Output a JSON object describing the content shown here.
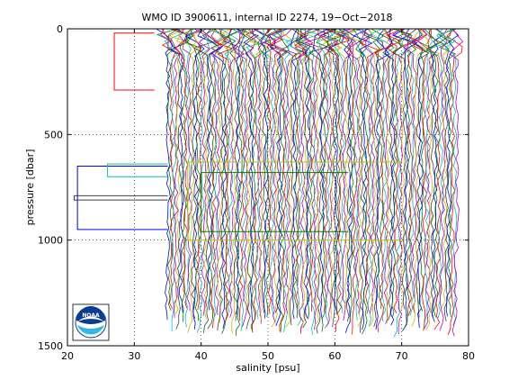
{
  "chart_data": {
    "type": "line",
    "title": "WMO ID 3900611, internal ID 2274, 19−Oct−2018",
    "xlabel": "salinity [psu]",
    "ylabel": "pressure [dbar]",
    "xlim": [
      20,
      80
    ],
    "ylim": [
      1500,
      0
    ],
    "y_reversed": true,
    "grid": true,
    "grid_style": "dotted",
    "x_ticks": [
      20,
      30,
      40,
      50,
      60,
      70,
      80
    ],
    "y_ticks": [
      0,
      500,
      1000,
      1500
    ],
    "profile_offset_psu": 0.3,
    "profile_count": 145,
    "first_profile_base": [
      {
        "p": 0,
        "s": 34.6
      },
      {
        "p": 50,
        "s": 34.7
      },
      {
        "p": 100,
        "s": 34.9
      },
      {
        "p": 200,
        "s": 35.0
      },
      {
        "p": 300,
        "s": 35.0
      },
      {
        "p": 450,
        "s": 35.0
      },
      {
        "p": 600,
        "s": 35.1
      },
      {
        "p": 800,
        "s": 35.1
      },
      {
        "p": 1000,
        "s": 35.0
      },
      {
        "p": 1200,
        "s": 34.9
      },
      {
        "p": 1400,
        "s": 34.9
      }
    ],
    "outlier_segments": [
      {
        "p_from": 650,
        "p_to": 950,
        "s_left": 21.5,
        "s_right": 35.0
      },
      {
        "p_from": 640,
        "p_to": 700,
        "s_left": 26.0,
        "s_right": 35.0
      },
      {
        "p_from": 790,
        "p_to": 810,
        "s_left": 21.0,
        "s_right": 35.0
      },
      {
        "p_from": 20,
        "p_to": 290,
        "s_left": 27.0,
        "s_right": 33.0
      },
      {
        "p_from": 630,
        "p_to": 1000,
        "s_left": 38.0,
        "s_right": 70.0
      },
      {
        "p_from": 680,
        "p_to": 960,
        "s_left": 40.0,
        "s_right": 62.0
      }
    ],
    "series_colors": [
      "#0000ff",
      "#008000",
      "#ff0000",
      "#00bfbf",
      "#bf00bf",
      "#bfbf00",
      "#404040"
    ],
    "logo": "NOAA"
  },
  "logo_text": "NOAA"
}
